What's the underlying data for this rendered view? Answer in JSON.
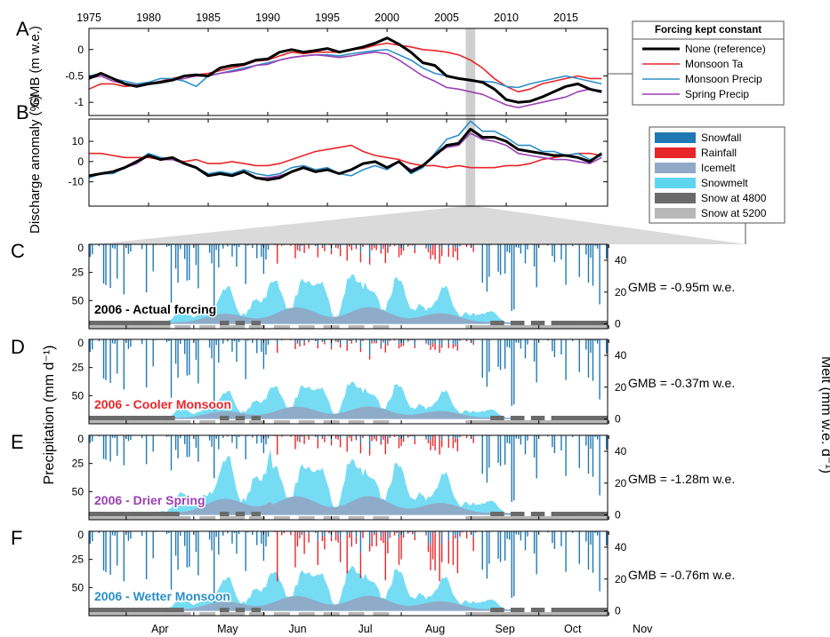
{
  "panel_letters": [
    "A",
    "B",
    "C",
    "D",
    "E",
    "F"
  ],
  "colors": {
    "reference": "#000000",
    "monsoon_ta": "#e8262a",
    "monsoon_precip": "#2b8fc8",
    "spring_precip": "#9b3fb4",
    "snowfall": "#1f78b4",
    "rainfall": "#e8262a",
    "icemelt": "#8fa9c6",
    "snowmelt": "#5ed6f2",
    "snow4800": "#6a6a6a",
    "snow5200": "#b8b8b8"
  },
  "chart_data": [
    {
      "type": "line",
      "panel": "A",
      "ylabel": "GMB (m w.e.)",
      "ylim": [
        -1.25,
        0.4
      ],
      "yticks": [
        "0",
        "-0.5",
        "-1"
      ],
      "xlim": [
        1975,
        2018.5
      ],
      "xticks": [
        "1975",
        "1980",
        "1985",
        "1990",
        "1995",
        "2000",
        "2005",
        "2010",
        "2015"
      ],
      "highlight": [
        2006.6,
        2007.4
      ],
      "legend_title": "Forcing kept constant",
      "x": [
        1975,
        1976,
        1977,
        1978,
        1979,
        1980,
        1981,
        1982,
        1983,
        1984,
        1985,
        1986,
        1987,
        1988,
        1989,
        1990,
        1991,
        1992,
        1993,
        1994,
        1995,
        1996,
        1997,
        1998,
        1999,
        2000,
        2001,
        2002,
        2003,
        2004,
        2005,
        2006,
        2007,
        2008,
        2009,
        2010,
        2011,
        2012,
        2013,
        2014,
        2015,
        2016,
        2017,
        2018
      ],
      "series": [
        {
          "name": "None (reference)",
          "values": [
            -0.55,
            -0.45,
            -0.55,
            -0.65,
            -0.7,
            -0.65,
            -0.62,
            -0.58,
            -0.5,
            -0.48,
            -0.5,
            -0.35,
            -0.3,
            -0.28,
            -0.2,
            -0.18,
            -0.05,
            0.0,
            -0.05,
            -0.02,
            0.02,
            -0.05,
            0.0,
            0.05,
            0.12,
            0.22,
            0.1,
            -0.05,
            -0.25,
            -0.3,
            -0.5,
            -0.55,
            -0.58,
            -0.62,
            -0.75,
            -0.95,
            -1.0,
            -0.98,
            -0.9,
            -0.8,
            -0.7,
            -0.65,
            -0.75,
            -0.8
          ]
        },
        {
          "name": "Monsoon Ta",
          "values": [
            -0.75,
            -0.65,
            -0.65,
            -0.7,
            -0.68,
            -0.65,
            -0.6,
            -0.55,
            -0.5,
            -0.48,
            -0.45,
            -0.4,
            -0.35,
            -0.3,
            -0.22,
            -0.2,
            -0.12,
            -0.05,
            -0.08,
            -0.05,
            -0.05,
            -0.05,
            0.0,
            0.02,
            0.08,
            0.12,
            0.08,
            0.05,
            0.0,
            -0.02,
            -0.05,
            -0.1,
            -0.2,
            -0.35,
            -0.55,
            -0.7,
            -0.8,
            -0.75,
            -0.65,
            -0.6,
            -0.55,
            -0.5,
            -0.55,
            -0.55
          ]
        },
        {
          "name": "Monsoon Precip",
          "values": [
            -0.5,
            -0.45,
            -0.55,
            -0.6,
            -0.65,
            -0.62,
            -0.55,
            -0.55,
            -0.6,
            -0.7,
            -0.5,
            -0.45,
            -0.4,
            -0.35,
            -0.3,
            -0.25,
            -0.2,
            -0.15,
            -0.12,
            -0.1,
            -0.1,
            -0.12,
            -0.08,
            -0.05,
            -0.02,
            0.0,
            -0.1,
            -0.2,
            -0.35,
            -0.45,
            -0.5,
            -0.55,
            -0.6,
            -0.6,
            -0.62,
            -0.7,
            -0.72,
            -0.65,
            -0.6,
            -0.55,
            -0.5,
            -0.55,
            -0.6,
            -0.65
          ]
        },
        {
          "name": "Spring Precip",
          "values": [
            -0.55,
            -0.5,
            -0.6,
            -0.65,
            -0.68,
            -0.65,
            -0.6,
            -0.58,
            -0.55,
            -0.5,
            -0.5,
            -0.45,
            -0.42,
            -0.38,
            -0.3,
            -0.28,
            -0.2,
            -0.15,
            -0.12,
            -0.1,
            -0.12,
            -0.15,
            -0.12,
            -0.08,
            -0.05,
            -0.08,
            -0.2,
            -0.35,
            -0.5,
            -0.6,
            -0.72,
            -0.75,
            -0.8,
            -0.85,
            -0.95,
            -1.05,
            -1.1,
            -1.05,
            -1.0,
            -0.95,
            -0.9,
            -0.8,
            -0.75,
            -0.78
          ]
        }
      ]
    },
    {
      "type": "line",
      "panel": "B",
      "ylabel": "Discharge anomaly (%)",
      "ylim": [
        -22,
        21
      ],
      "yticks": [
        "10",
        "0",
        "-10"
      ],
      "xlim": [
        1975,
        2018.5
      ],
      "x": [
        1975,
        1976,
        1977,
        1978,
        1979,
        1980,
        1981,
        1982,
        1983,
        1984,
        1985,
        1986,
        1987,
        1988,
        1989,
        1990,
        1991,
        1992,
        1993,
        1994,
        1995,
        1996,
        1997,
        1998,
        1999,
        2000,
        2001,
        2002,
        2003,
        2004,
        2005,
        2006,
        2007,
        2008,
        2009,
        2010,
        2011,
        2012,
        2013,
        2014,
        2015,
        2016,
        2017,
        2018
      ],
      "series": [
        {
          "name": "None (reference)",
          "values": [
            -7,
            -6,
            -5,
            -3,
            0,
            3,
            1,
            2,
            -1,
            -3,
            -7,
            -6,
            -7,
            -5,
            -8,
            -9,
            -8,
            -5,
            -3,
            -5,
            -4,
            -6,
            -4,
            -1,
            0,
            -3,
            0,
            -5,
            -2,
            3,
            8,
            9,
            16,
            12,
            12,
            10,
            6,
            5,
            4,
            3,
            3,
            2,
            0,
            4
          ]
        },
        {
          "name": "Monsoon Ta",
          "values": [
            4,
            4,
            3,
            2,
            2,
            2,
            1,
            1,
            0,
            1,
            -1,
            -1,
            0,
            -1,
            -2,
            -2,
            -1,
            1,
            3,
            5,
            6,
            7,
            8,
            5,
            3,
            2,
            1,
            -1,
            -2,
            -2,
            -3,
            -2,
            -3,
            -3,
            -3,
            -2,
            -2,
            -1,
            1,
            2,
            3,
            4,
            4,
            3
          ]
        },
        {
          "name": "Monsoon Precip",
          "values": [
            -8,
            -6,
            -6,
            -3,
            0,
            4,
            2,
            1,
            -1,
            -3,
            -6,
            -5,
            -6,
            -4,
            -6,
            -7,
            -6,
            -3,
            -2,
            -4,
            -3,
            -6,
            -7,
            -4,
            -2,
            -4,
            0,
            -6,
            -3,
            4,
            11,
            13,
            20,
            15,
            15,
            12,
            8,
            8,
            5,
            5,
            3,
            4,
            1,
            3
          ]
        },
        {
          "name": "Spring Precip",
          "values": [
            -7,
            -6,
            -5,
            -3,
            -1,
            3,
            1,
            1,
            -1,
            -3,
            -7,
            -6,
            -7,
            -5,
            -8,
            -8,
            -7,
            -5,
            -3,
            -5,
            -4,
            -6,
            -4,
            -1,
            0,
            -3,
            0,
            -4,
            -2,
            3,
            7,
            8,
            14,
            11,
            10,
            8,
            4,
            3,
            2,
            1,
            1,
            0,
            -1,
            2
          ]
        }
      ]
    },
    {
      "type": "bar",
      "panels": [
        "C",
        "D",
        "E",
        "F"
      ],
      "left_axis_label": "Precipitation (mm d⁻¹)",
      "left_ylim": [
        0,
        75
      ],
      "left_yticks": [
        "0",
        "25",
        "50"
      ],
      "right_axis_label": "Melt (mm w.e. d⁻¹)",
      "right_ylim": [
        -3,
        50
      ],
      "right_yticks": [
        "40",
        "20",
        "0"
      ],
      "months": [
        "Apr",
        "May",
        "Jun",
        "Jul",
        "Aug",
        "Sep",
        "Oct",
        "Nov"
      ],
      "legend": [
        "Snowfall",
        "Rainfall",
        "Icemelt",
        "Snowmelt",
        "Snow at 4800",
        "Snow at 5200"
      ],
      "scenarios": [
        {
          "label": "2006 - Actual forcing",
          "gmb": "GMB = -0.95m w.e.",
          "label_color": "#000000",
          "melt_scale": 1.0,
          "rain_scale": 1.0,
          "spring_scale": 1.0
        },
        {
          "label": "2006 - Cooler Monsoon",
          "gmb": "GMB = -0.37m w.e.",
          "label_color": "#e8262a",
          "melt_scale": 0.75,
          "rain_scale": 0.7,
          "spring_scale": 1.0
        },
        {
          "label": "2006 -  Drier Spring",
          "gmb": "GMB = -1.28m w.e.",
          "label_color": "#9b3fb4",
          "melt_scale": 1.12,
          "rain_scale": 1.0,
          "spring_scale": 1.4
        },
        {
          "label": "2006 - Wetter Monsoon",
          "gmb": "GMB = -0.76m w.e.",
          "label_color": "#2b8fc8",
          "melt_scale": 0.9,
          "rain_scale": 2.6,
          "spring_scale": 1.0
        }
      ]
    }
  ]
}
